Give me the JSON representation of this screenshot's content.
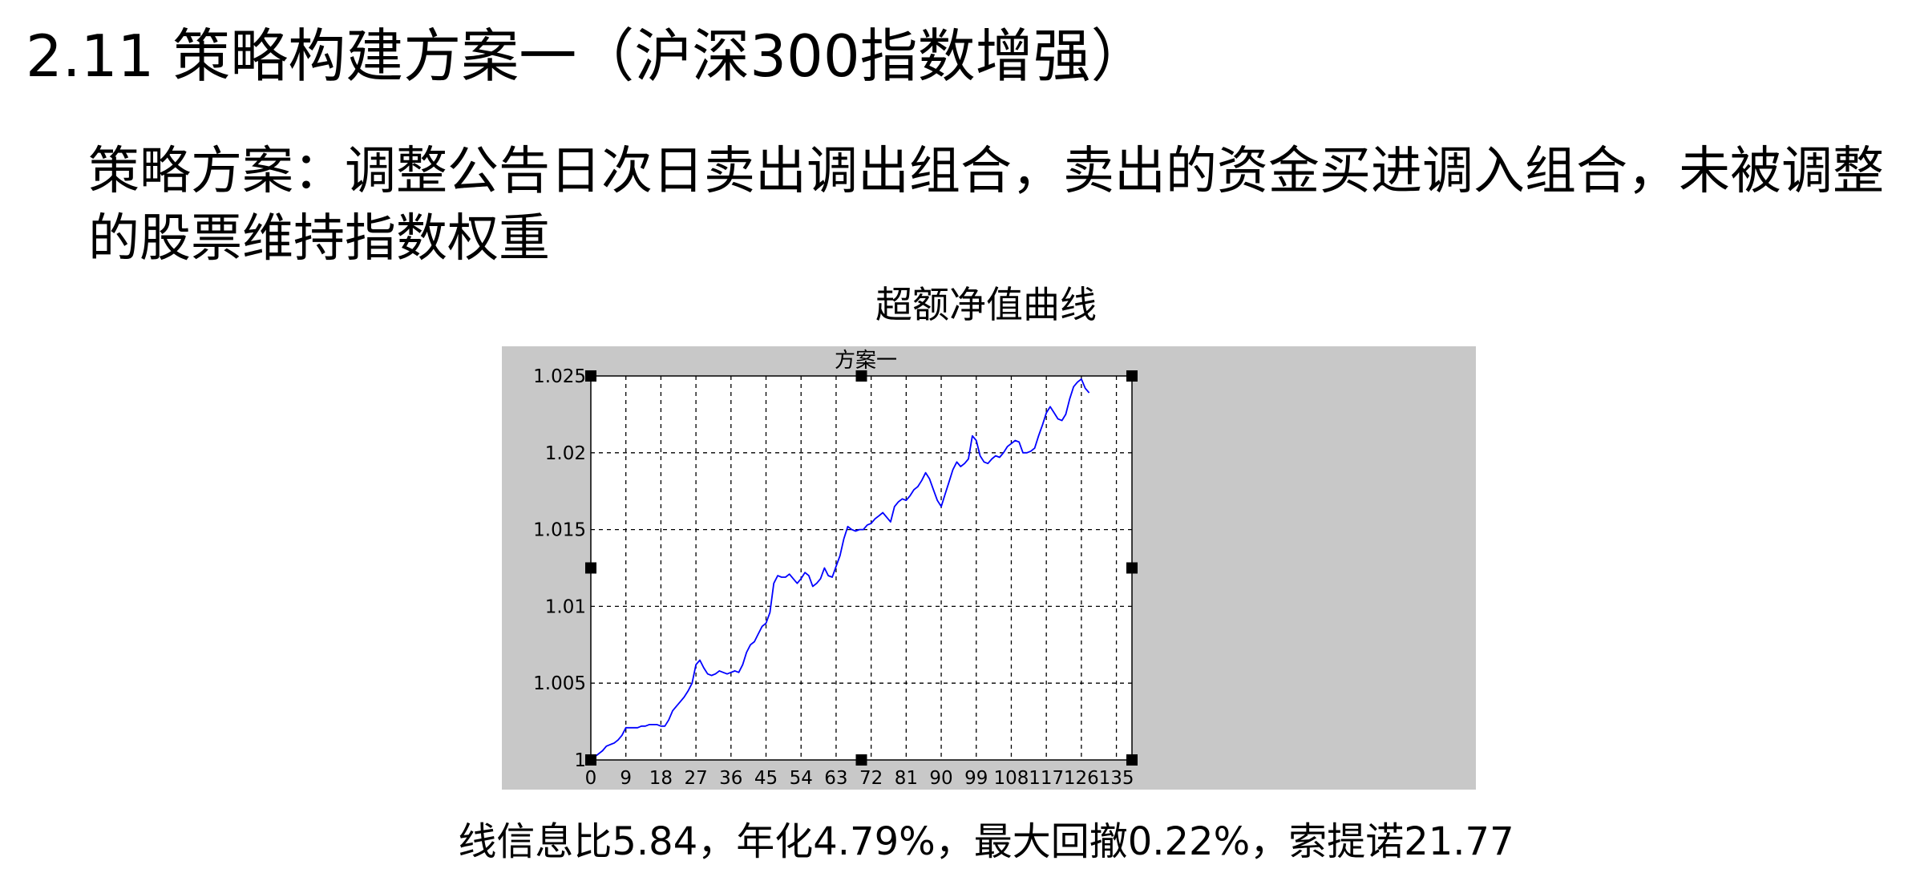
{
  "page": {
    "title": "2.11 策略构建方案一（沪深300指数增强）",
    "strategy": "策略方案：调整公告日次日卖出调出组合，卖出的资金买进调入组合，未被调整的股票维持指数权重",
    "chart_heading": "超额净值曲线",
    "caption": "线信息比5.84，年化4.79%，最大回撤0.22%，索提诺21.77"
  },
  "colors": {
    "background": "#ffffff",
    "figure_bg": "#c8c8c8",
    "plot_bg": "#ffffff",
    "line": "#0000ff",
    "grid": "#000000"
  },
  "chart_data": {
    "type": "line",
    "title": "方案一",
    "xlabel": "",
    "ylabel": "",
    "xlim": [
      0,
      139
    ],
    "ylim": [
      1.0,
      1.025
    ],
    "x_ticks": [
      0,
      9,
      18,
      27,
      36,
      45,
      54,
      63,
      72,
      81,
      90,
      99,
      108,
      117,
      126,
      135
    ],
    "y_ticks": [
      1.0,
      1.005,
      1.01,
      1.015,
      1.02,
      1.025
    ],
    "y_tick_labels": [
      "1",
      "1.005",
      "1.01",
      "1.015",
      "1.02",
      "1.025"
    ],
    "grid": true,
    "legend": "none",
    "series": [
      {
        "values": [
          1.0,
          1.0002,
          1.0004,
          1.0006,
          1.0009,
          1.001,
          1.0011,
          1.0013,
          1.0016,
          1.0021,
          1.0021,
          1.0021,
          1.0021,
          1.0022,
          1.0022,
          1.0023,
          1.0023,
          1.0023,
          1.0022,
          1.0022,
          1.0026,
          1.0032,
          1.0035,
          1.0038,
          1.0041,
          1.0045,
          1.005,
          1.0062,
          1.0065,
          1.006,
          1.0056,
          1.0055,
          1.0056,
          1.0058,
          1.0057,
          1.0056,
          1.0057,
          1.0058,
          1.0057,
          1.0062,
          1.007,
          1.0075,
          1.0077,
          1.0082,
          1.0087,
          1.0089,
          1.0096,
          1.0115,
          1.012,
          1.0119,
          1.0119,
          1.0121,
          1.0118,
          1.0115,
          1.0118,
          1.0122,
          1.012,
          1.0113,
          1.0115,
          1.0118,
          1.0125,
          1.012,
          1.0119,
          1.0126,
          1.0133,
          1.0144,
          1.0152,
          1.015,
          1.0149,
          1.015,
          1.015,
          1.0153,
          1.0154,
          1.0157,
          1.0159,
          1.0161,
          1.0158,
          1.0155,
          1.0165,
          1.0168,
          1.017,
          1.0169,
          1.0172,
          1.0176,
          1.0178,
          1.0182,
          1.0187,
          1.0183,
          1.0176,
          1.0169,
          1.0165,
          1.0173,
          1.0181,
          1.0189,
          1.0194,
          1.0191,
          1.0193,
          1.0196,
          1.0211,
          1.0208,
          1.0198,
          1.0194,
          1.0193,
          1.0196,
          1.0198,
          1.0197,
          1.02,
          1.0204,
          1.0206,
          1.0208,
          1.0207,
          1.02,
          1.02,
          1.0201,
          1.0203,
          1.0211,
          1.0218,
          1.0226,
          1.023,
          1.0226,
          1.0222,
          1.0221,
          1.0225,
          1.0235,
          1.0243,
          1.0246,
          1.0248,
          1.0242,
          1.0239
        ]
      }
    ]
  }
}
